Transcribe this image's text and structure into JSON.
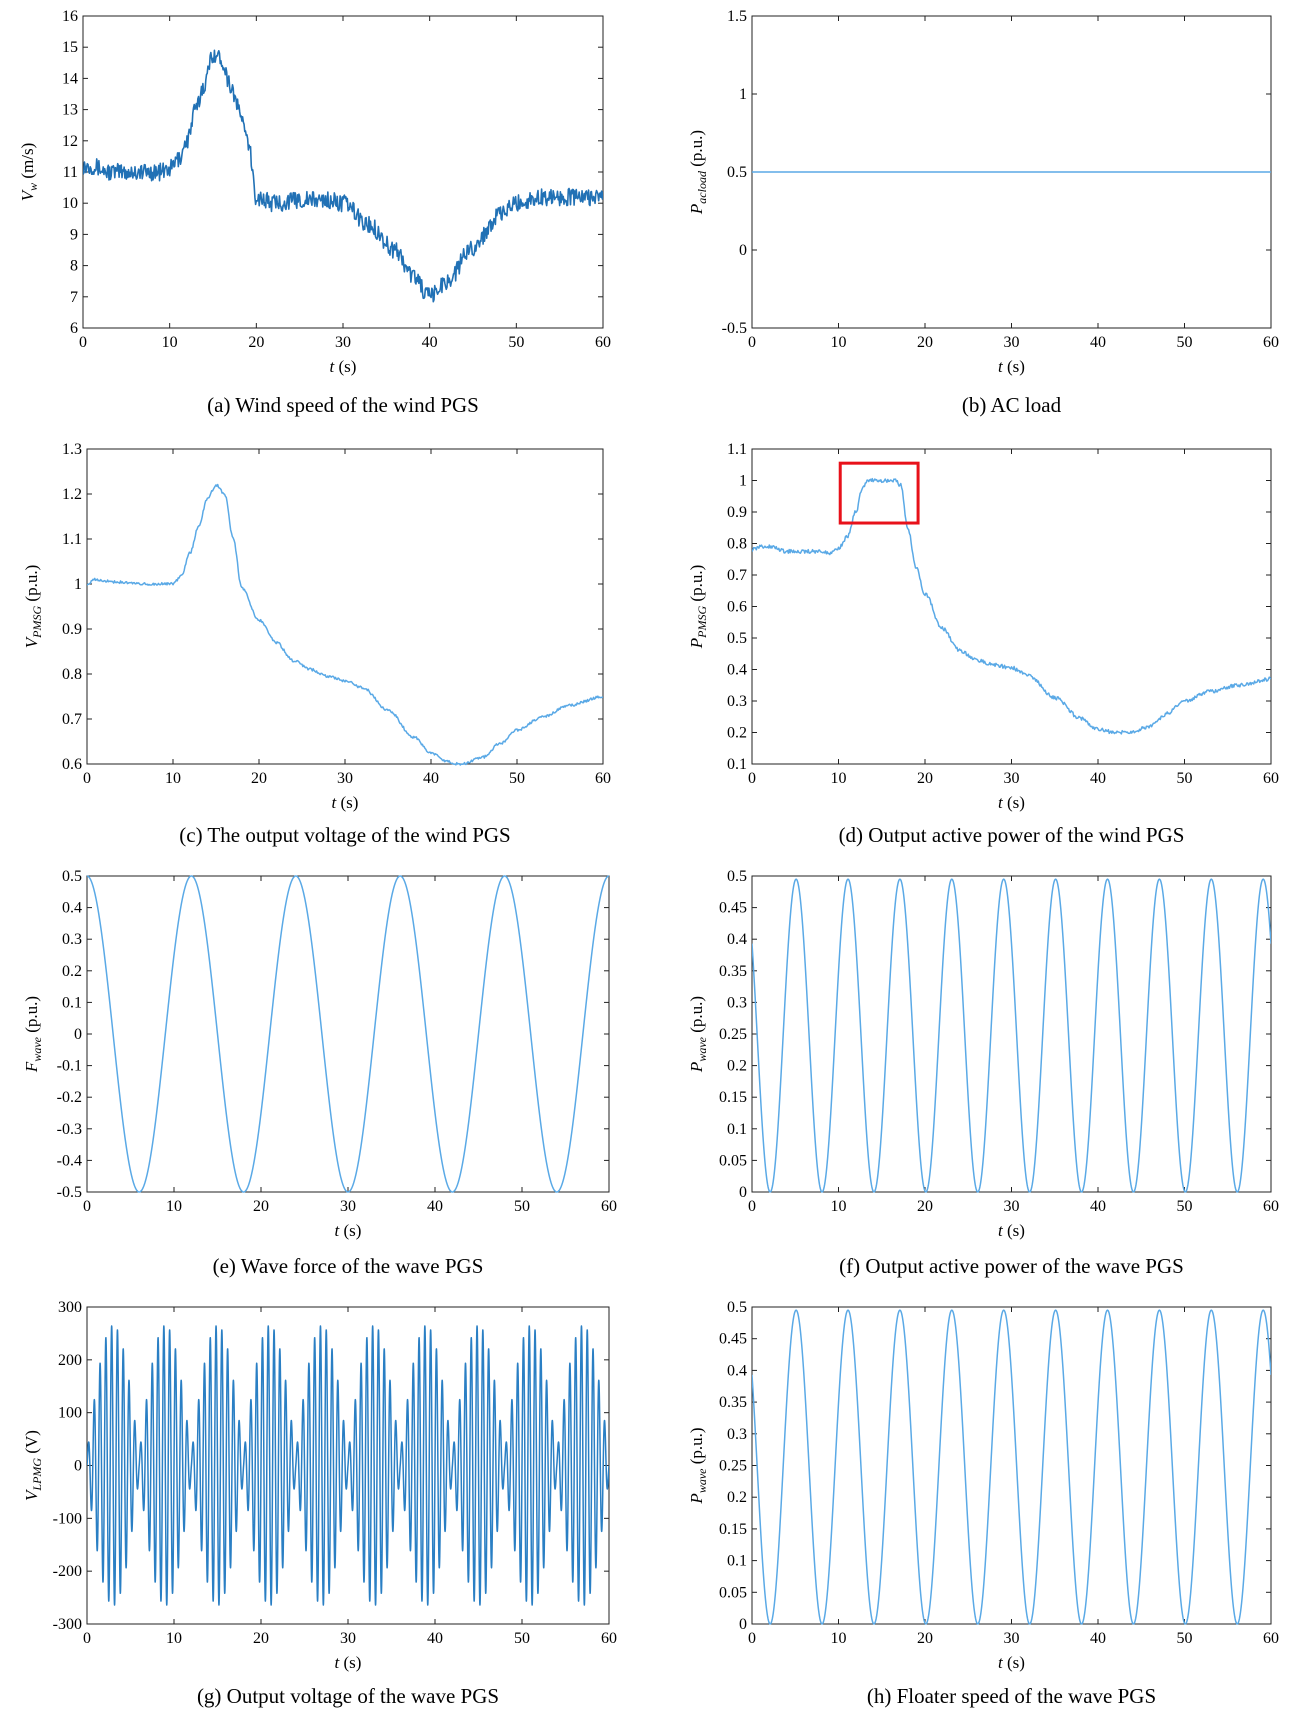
{
  "figure": {
    "panels_order": [
      "a",
      "b",
      "c",
      "d",
      "e",
      "f",
      "g",
      "h"
    ]
  },
  "chart_data": [
    {
      "id": "a",
      "type": "line",
      "caption": "(a) Wind speed of the wind PGS",
      "xlabel": "t (s)",
      "ylabel": "V_w (m/s)",
      "xlim": [
        0,
        60
      ],
      "ylim": [
        6,
        16
      ],
      "xticks": [
        0,
        10,
        20,
        30,
        40,
        50,
        60
      ],
      "yticks": [
        6,
        7,
        8,
        9,
        10,
        11,
        12,
        13,
        14,
        15,
        16
      ],
      "color": "#2171b5",
      "series": [
        {
          "kind": "noisy",
          "noise": 0.28,
          "x": [
            0,
            1,
            3,
            6,
            9,
            10,
            11,
            12,
            13,
            14,
            15,
            16,
            17,
            18,
            19,
            20,
            22,
            25,
            28,
            30,
            33,
            36,
            38,
            40,
            42,
            45,
            48,
            50,
            53,
            56,
            60
          ],
          "y": [
            11.2,
            11.2,
            11.0,
            11.0,
            11.0,
            11.1,
            11.4,
            12.0,
            13.0,
            13.8,
            14.8,
            14.6,
            13.8,
            13.0,
            12.0,
            10.2,
            10.0,
            10.1,
            10.1,
            10.0,
            9.3,
            8.5,
            7.7,
            7.0,
            7.5,
            8.6,
            9.6,
            10.0,
            10.2,
            10.2,
            10.2
          ]
        }
      ]
    },
    {
      "id": "b",
      "type": "line",
      "caption": "(b) AC load",
      "xlabel": "t (s)",
      "ylabel": "P_acload (p.u.)",
      "xlim": [
        0,
        60
      ],
      "ylim": [
        -0.5,
        1.5
      ],
      "xticks": [
        0,
        10,
        20,
        30,
        40,
        50,
        60
      ],
      "yticks": [
        -0.5,
        0,
        0.5,
        1,
        1.5
      ],
      "color": "#5aa9e6",
      "series": [
        {
          "kind": "line",
          "x": [
            0,
            60
          ],
          "y": [
            0.5,
            0.5
          ]
        }
      ]
    },
    {
      "id": "c",
      "type": "line",
      "caption": "(c) The output voltage of the wind PGS",
      "xlabel": "t (s)",
      "ylabel": "V_PMSG (p.u.)",
      "xlim": [
        0,
        60
      ],
      "ylim": [
        0.6,
        1.3
      ],
      "xticks": [
        0,
        10,
        20,
        30,
        40,
        50,
        60
      ],
      "yticks": [
        0.6,
        0.7,
        0.8,
        0.9,
        1,
        1.1,
        1.2,
        1.3
      ],
      "color": "#5aa9e6",
      "series": [
        {
          "kind": "smooth",
          "noise": 0.003,
          "x": [
            0,
            1,
            3,
            6,
            9,
            10,
            11,
            12,
            13,
            14,
            15,
            16,
            17,
            18,
            20,
            22,
            24,
            26,
            28,
            30,
            32,
            35,
            38,
            40,
            42,
            43,
            44,
            46,
            48,
            50,
            53,
            56,
            60
          ],
          "y": [
            1.0,
            1.01,
            1.005,
            1.0,
            1.0,
            1.0,
            1.02,
            1.07,
            1.13,
            1.19,
            1.22,
            1.2,
            1.1,
            0.99,
            0.92,
            0.87,
            0.83,
            0.81,
            0.795,
            0.785,
            0.77,
            0.72,
            0.66,
            0.625,
            0.605,
            0.6,
            0.602,
            0.615,
            0.645,
            0.675,
            0.705,
            0.73,
            0.75
          ]
        }
      ]
    },
    {
      "id": "d",
      "type": "line",
      "caption": "(d) Output active power of the wind PGS",
      "xlabel": "t (s)",
      "ylabel": "P_PMSG (p.u.)",
      "xlim": [
        0,
        60
      ],
      "ylim": [
        0.1,
        1.1
      ],
      "xticks": [
        0,
        10,
        20,
        30,
        40,
        50,
        60
      ],
      "yticks": [
        0.1,
        0.2,
        0.3,
        0.4,
        0.5,
        0.6,
        0.7,
        0.8,
        0.9,
        1,
        1.1
      ],
      "color": "#5aa9e6",
      "highlight_box": {
        "x": [
          10.2,
          19.2
        ],
        "y": [
          0.865,
          1.055
        ],
        "color": "#e8111a"
      },
      "series": [
        {
          "kind": "smooth",
          "noise": 0.006,
          "x": [
            0,
            1,
            2,
            4,
            6,
            8,
            9,
            10,
            11,
            12,
            12.8,
            13.5,
            15,
            16.5,
            17.2,
            18,
            19,
            20,
            22,
            24,
            26,
            28,
            30,
            32,
            35,
            38,
            40,
            42,
            43,
            44,
            46,
            48,
            50,
            53,
            56,
            60
          ],
          "y": [
            0.78,
            0.79,
            0.79,
            0.775,
            0.775,
            0.775,
            0.77,
            0.785,
            0.82,
            0.9,
            0.98,
            1.0,
            1.0,
            1.0,
            0.985,
            0.85,
            0.72,
            0.64,
            0.53,
            0.46,
            0.43,
            0.415,
            0.405,
            0.38,
            0.31,
            0.245,
            0.21,
            0.2,
            0.2,
            0.202,
            0.22,
            0.26,
            0.3,
            0.33,
            0.35,
            0.37
          ]
        }
      ]
    },
    {
      "id": "e",
      "type": "line",
      "caption": "(e) Wave force of the wave PGS",
      "xlabel": "t (s)",
      "ylabel": "F_wave (p.u.)",
      "xlim": [
        0,
        60
      ],
      "ylim": [
        -0.5,
        0.5
      ],
      "xticks": [
        0,
        10,
        20,
        30,
        40,
        50,
        60
      ],
      "yticks": [
        -0.5,
        -0.4,
        -0.3,
        -0.2,
        -0.1,
        0,
        0.1,
        0.2,
        0.3,
        0.4,
        0.5
      ],
      "color": "#5aa9e6",
      "series": [
        {
          "kind": "wave",
          "model": "0.5*cos(2*pi*t/12)",
          "amplitude": 0.5,
          "period": 12,
          "phase": 0,
          "offset": 0
        }
      ]
    },
    {
      "id": "f",
      "type": "line",
      "caption": "(f) Output active power of the wave PGS",
      "xlabel": "t (s)",
      "ylabel": "P_wave (p.u.)",
      "xlim": [
        0,
        60
      ],
      "ylim": [
        0,
        0.5
      ],
      "xticks": [
        0,
        10,
        20,
        30,
        40,
        50,
        60
      ],
      "yticks": [
        0,
        0.05,
        0.1,
        0.15,
        0.2,
        0.25,
        0.3,
        0.35,
        0.4,
        0.45,
        0.5
      ],
      "color": "#5aa9e6",
      "series": [
        {
          "kind": "wave",
          "model": "0.2475+0.2475*sin(2*pi*(t-2.1)/6-pi/2)",
          "amplitude": 0.2475,
          "period": 6,
          "shift": 2.1,
          "offset": 0.2475
        }
      ]
    },
    {
      "id": "g",
      "type": "line",
      "caption": "(g) Output voltage of the wave PGS",
      "xlabel": "t (s)",
      "ylabel": "V_LPMG (V)",
      "xlim": [
        0,
        60
      ],
      "ylim": [
        -300,
        300
      ],
      "xticks": [
        0,
        10,
        20,
        30,
        40,
        50,
        60
      ],
      "yticks": [
        -300,
        -200,
        -100,
        0,
        100,
        200,
        300
      ],
      "color": "#2a7fc4",
      "series": [
        {
          "kind": "am",
          "model": "265*|sin(2*pi*t/12)|*sin(2*pi*t*1.5)",
          "amplitude": 265,
          "envelope_period": 12,
          "carrier_freq": 1.5
        }
      ]
    },
    {
      "id": "h",
      "type": "line",
      "caption": "(h) Floater speed of the wave PGS",
      "xlabel": "t (s)",
      "ylabel": "P_wave (p.u.)",
      "xlim": [
        0,
        60
      ],
      "ylim": [
        0,
        0.5
      ],
      "xticks": [
        0,
        10,
        20,
        30,
        40,
        50,
        60
      ],
      "yticks": [
        0,
        0.05,
        0.1,
        0.15,
        0.2,
        0.25,
        0.3,
        0.35,
        0.4,
        0.45,
        0.5
      ],
      "color": "#5aa9e6",
      "series": [
        {
          "kind": "wave",
          "model": "0.2475+0.2475*sin(2*pi*(t-2.1)/6-pi/2)",
          "amplitude": 0.2475,
          "period": 6,
          "shift": 2.1,
          "offset": 0.2475
        }
      ]
    }
  ]
}
